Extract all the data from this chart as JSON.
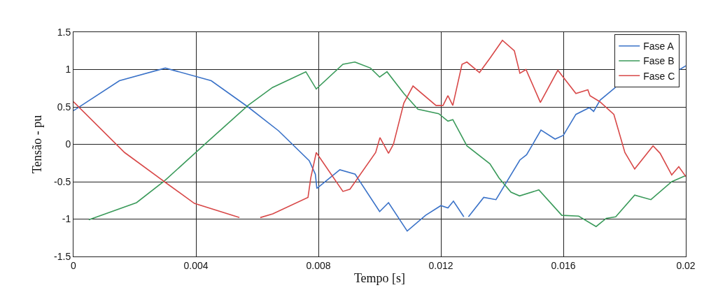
{
  "chart_data": {
    "type": "line",
    "xlabel": "Tempo [s]",
    "ylabel": "Tensão - pu",
    "xlim": [
      0,
      0.02
    ],
    "xticks": [
      0,
      0.004,
      0.008,
      0.012,
      0.016,
      0.02
    ],
    "ylim": [
      -1.5,
      1.5
    ],
    "yticks": [
      -1.5,
      -1,
      -0.5,
      0,
      0.5,
      1,
      1.5
    ],
    "grid": true,
    "legend": "top right",
    "marker": "none",
    "line_style": "solid",
    "series": [
      {
        "name": "Fase A",
        "color": "#3a72c8",
        "x": [
          0,
          0.0015,
          0.003,
          0.0045,
          0.0057,
          0.0067,
          0.0077,
          0.0079,
          0.00795,
          0.0087,
          0.0092,
          0.01,
          0.01029,
          0.0109,
          0.0115,
          0.012,
          0.01223,
          0.01241,
          0.01275,
          0.0128,
          0.0129,
          0.0134,
          0.0138,
          0.01458,
          0.0148,
          0.01527,
          0.01573,
          0.016,
          0.01641,
          0.01685,
          0.01699,
          0.0172,
          0.0177,
          0.0178,
          0.0198,
          0.02
        ],
        "values": [
          0.45,
          0.85,
          1.02,
          0.85,
          0.5,
          0.18,
          -0.22,
          -0.4,
          -0.59,
          -0.34,
          -0.4,
          -0.9,
          -0.78,
          -1.16,
          -0.95,
          -0.82,
          -0.85,
          -0.76,
          -0.97,
          null,
          -0.97,
          -0.71,
          -0.74,
          -0.21,
          -0.14,
          0.19,
          0.07,
          0.12,
          0.4,
          0.49,
          0.44,
          0.59,
          0.76,
          null,
          1.0,
          1.05
        ]
      },
      {
        "name": "Fase B",
        "color": "#3a9a5a",
        "x": [
          0.0005,
          0.00206,
          0.00297,
          0.00434,
          0.0057,
          0.0065,
          0.00759,
          0.00793,
          0.0088,
          0.00919,
          0.0097,
          0.01,
          0.01024,
          0.01079,
          0.01125,
          0.01193,
          0.01223,
          0.01239,
          0.01285,
          0.0136,
          0.0139,
          0.01429,
          0.01457,
          0.0152,
          0.01595,
          0.0165,
          0.01707,
          0.0174,
          0.01771,
          0.01833,
          0.01886,
          0.01954,
          0.01993,
          0.02
        ],
        "values": [
          -1.01,
          -0.78,
          -0.49,
          0.02,
          0.52,
          0.76,
          0.97,
          0.74,
          1.07,
          1.1,
          1.02,
          0.9,
          0.97,
          0.68,
          0.47,
          0.41,
          0.31,
          0.33,
          -0.02,
          -0.26,
          -0.45,
          -0.64,
          -0.69,
          -0.61,
          -0.95,
          -0.96,
          -1.1,
          -0.99,
          -0.97,
          -0.68,
          -0.74,
          -0.5,
          -0.43,
          -0.42
        ]
      },
      {
        "name": "Fase C",
        "color": "#d84848",
        "x": [
          0,
          0.00167,
          0.00297,
          0.00395,
          0.00542,
          0.0058,
          0.0061,
          0.00651,
          0.00766,
          0.00775,
          0.00793,
          0.0088,
          0.00903,
          0.00987,
          0.01001,
          0.01029,
          0.01045,
          0.01079,
          0.01109,
          0.01184,
          0.01207,
          0.01223,
          0.01239,
          0.01269,
          0.01285,
          0.01326,
          0.0136,
          0.01401,
          0.0144,
          0.01458,
          0.01478,
          0.01525,
          0.01582,
          0.01641,
          0.0168,
          0.01687,
          0.01719,
          0.01765,
          0.01801,
          0.01833,
          0.01893,
          0.01916,
          0.01954,
          0.01977,
          0.02
        ],
        "values": [
          0.57,
          -0.11,
          -0.5,
          -0.79,
          -0.98,
          null,
          -0.98,
          -0.93,
          -0.71,
          -0.45,
          -0.11,
          -0.63,
          -0.6,
          -0.11,
          0.09,
          -0.12,
          0.0,
          0.55,
          0.78,
          0.52,
          0.52,
          0.65,
          0.52,
          1.07,
          1.1,
          0.96,
          1.15,
          1.39,
          1.25,
          0.95,
          1.0,
          0.56,
          0.99,
          0.68,
          0.73,
          0.65,
          0.57,
          0.4,
          -0.11,
          -0.33,
          -0.02,
          -0.12,
          -0.41,
          -0.3,
          -0.43
        ]
      }
    ]
  }
}
